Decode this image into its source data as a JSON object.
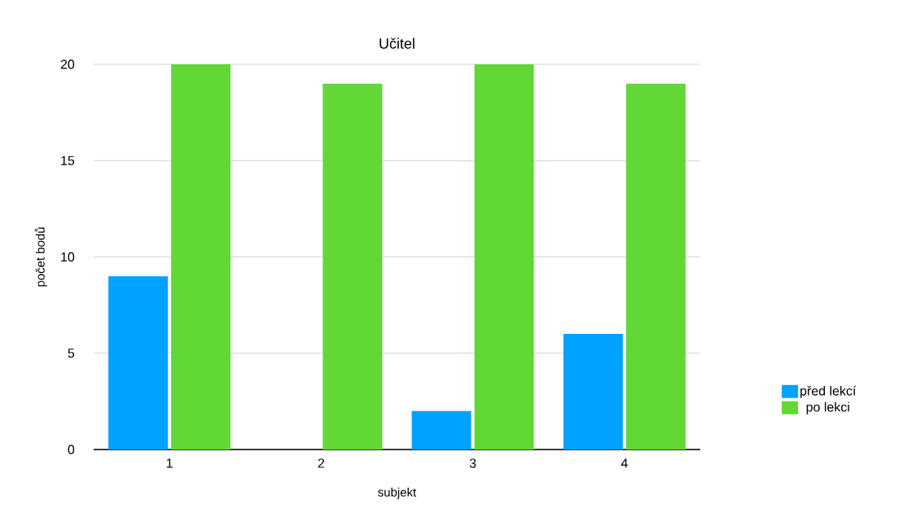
{
  "chart_data": {
    "type": "bar",
    "title": "Učitel",
    "xlabel": "subjekt",
    "ylabel": "počet bodů",
    "categories": [
      "1",
      "2",
      "3",
      "4"
    ],
    "series": [
      {
        "name": "před lekcí",
        "color": "#00a2ff",
        "values": [
          9,
          0,
          2,
          6
        ]
      },
      {
        "name": "po lekci",
        "color": "#61d836",
        "values": [
          20,
          19,
          20,
          19
        ]
      }
    ],
    "ylim": [
      0,
      20
    ],
    "yticks": [
      0,
      5,
      10,
      15,
      20
    ],
    "grid": "y",
    "legend": "right"
  }
}
